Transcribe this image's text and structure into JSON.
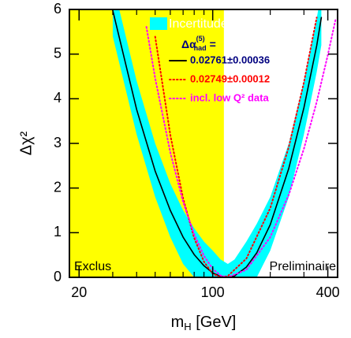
{
  "chart_data": {
    "type": "line",
    "log_x": true,
    "xlabel": {
      "text": "m",
      "sub": "H",
      "rest": " [GeV]"
    },
    "ylabel": "Δχ²",
    "xlim": [
      17.8,
      450
    ],
    "ylim": [
      0,
      6
    ],
    "xticks": [
      20,
      100,
      400
    ],
    "xminor": [
      30,
      40,
      50,
      60,
      70,
      80,
      90,
      200,
      300
    ],
    "yticks": [
      0,
      1,
      2,
      3,
      4,
      5,
      6
    ],
    "excluded_below": 114.4,
    "excluded_color": "#ffff00",
    "legend_header": {
      "text": "Δα",
      "sup": "(5)",
      "sub": "had",
      "rest": " ="
    },
    "band": {
      "name": "Incertitude theorique",
      "color": "#00ffff",
      "x": [
        30,
        40,
        50,
        60,
        70,
        80,
        90,
        100,
        110,
        120,
        130,
        150,
        170,
        200,
        250,
        300,
        350,
        370
      ],
      "lower": [
        5.4,
        3.2,
        1.8,
        0.9,
        0.3,
        0,
        0,
        0,
        0,
        0,
        0,
        0,
        0,
        0.6,
        1.8,
        3.2,
        4.6,
        5.2
      ],
      "upper": [
        6.6,
        4.4,
        3.0,
        2.1,
        1.5,
        1.1,
        0.8,
        0.6,
        0.4,
        0.3,
        0.4,
        0.8,
        1.2,
        1.8,
        3.0,
        4.4,
        5.8,
        6.4
      ]
    },
    "series": [
      {
        "name": "0.02761±0.00036",
        "color": "#000000",
        "text_color": "#000080",
        "dash": "solid",
        "x": [
          30,
          40,
          50,
          60,
          70,
          80,
          90,
          100,
          110,
          120,
          130,
          150,
          170,
          200,
          250,
          300,
          350,
          370
        ],
        "values": [
          5.98,
          3.76,
          2.38,
          1.5,
          0.9,
          0.51,
          0.26,
          0.1,
          0.02,
          0,
          0.03,
          0.23,
          0.55,
          1.18,
          2.44,
          3.8,
          5.19,
          5.82
        ]
      },
      {
        "name": "0.02749±0.00012",
        "color": "#ff0000",
        "text_color": "#ff0000",
        "dash": "dotted",
        "x": [
          50,
          60,
          70,
          80,
          90,
          100,
          110,
          120,
          150,
          200,
          250,
          300,
          350
        ],
        "values": [
          5.39,
          3.19,
          1.77,
          0.88,
          0.35,
          0.08,
          0,
          0.03,
          0.42,
          1.55,
          2.92,
          4.37,
          5.82
        ]
      },
      {
        "name": "incl. low Q² data",
        "color": "#ff00ff",
        "text_color": "#ff00ff",
        "dash": "dotted",
        "x": [
          45,
          50,
          60,
          70,
          80,
          90,
          100,
          110,
          120,
          150,
          200,
          250,
          300,
          350,
          400,
          440
        ],
        "values": [
          5.61,
          4.46,
          2.8,
          1.69,
          0.96,
          0.48,
          0.19,
          0.04,
          0,
          0.17,
          0.9,
          1.85,
          2.88,
          3.93,
          4.98,
          5.79
        ]
      }
    ],
    "annotations": [
      "Exclus",
      "Preliminaire"
    ]
  }
}
